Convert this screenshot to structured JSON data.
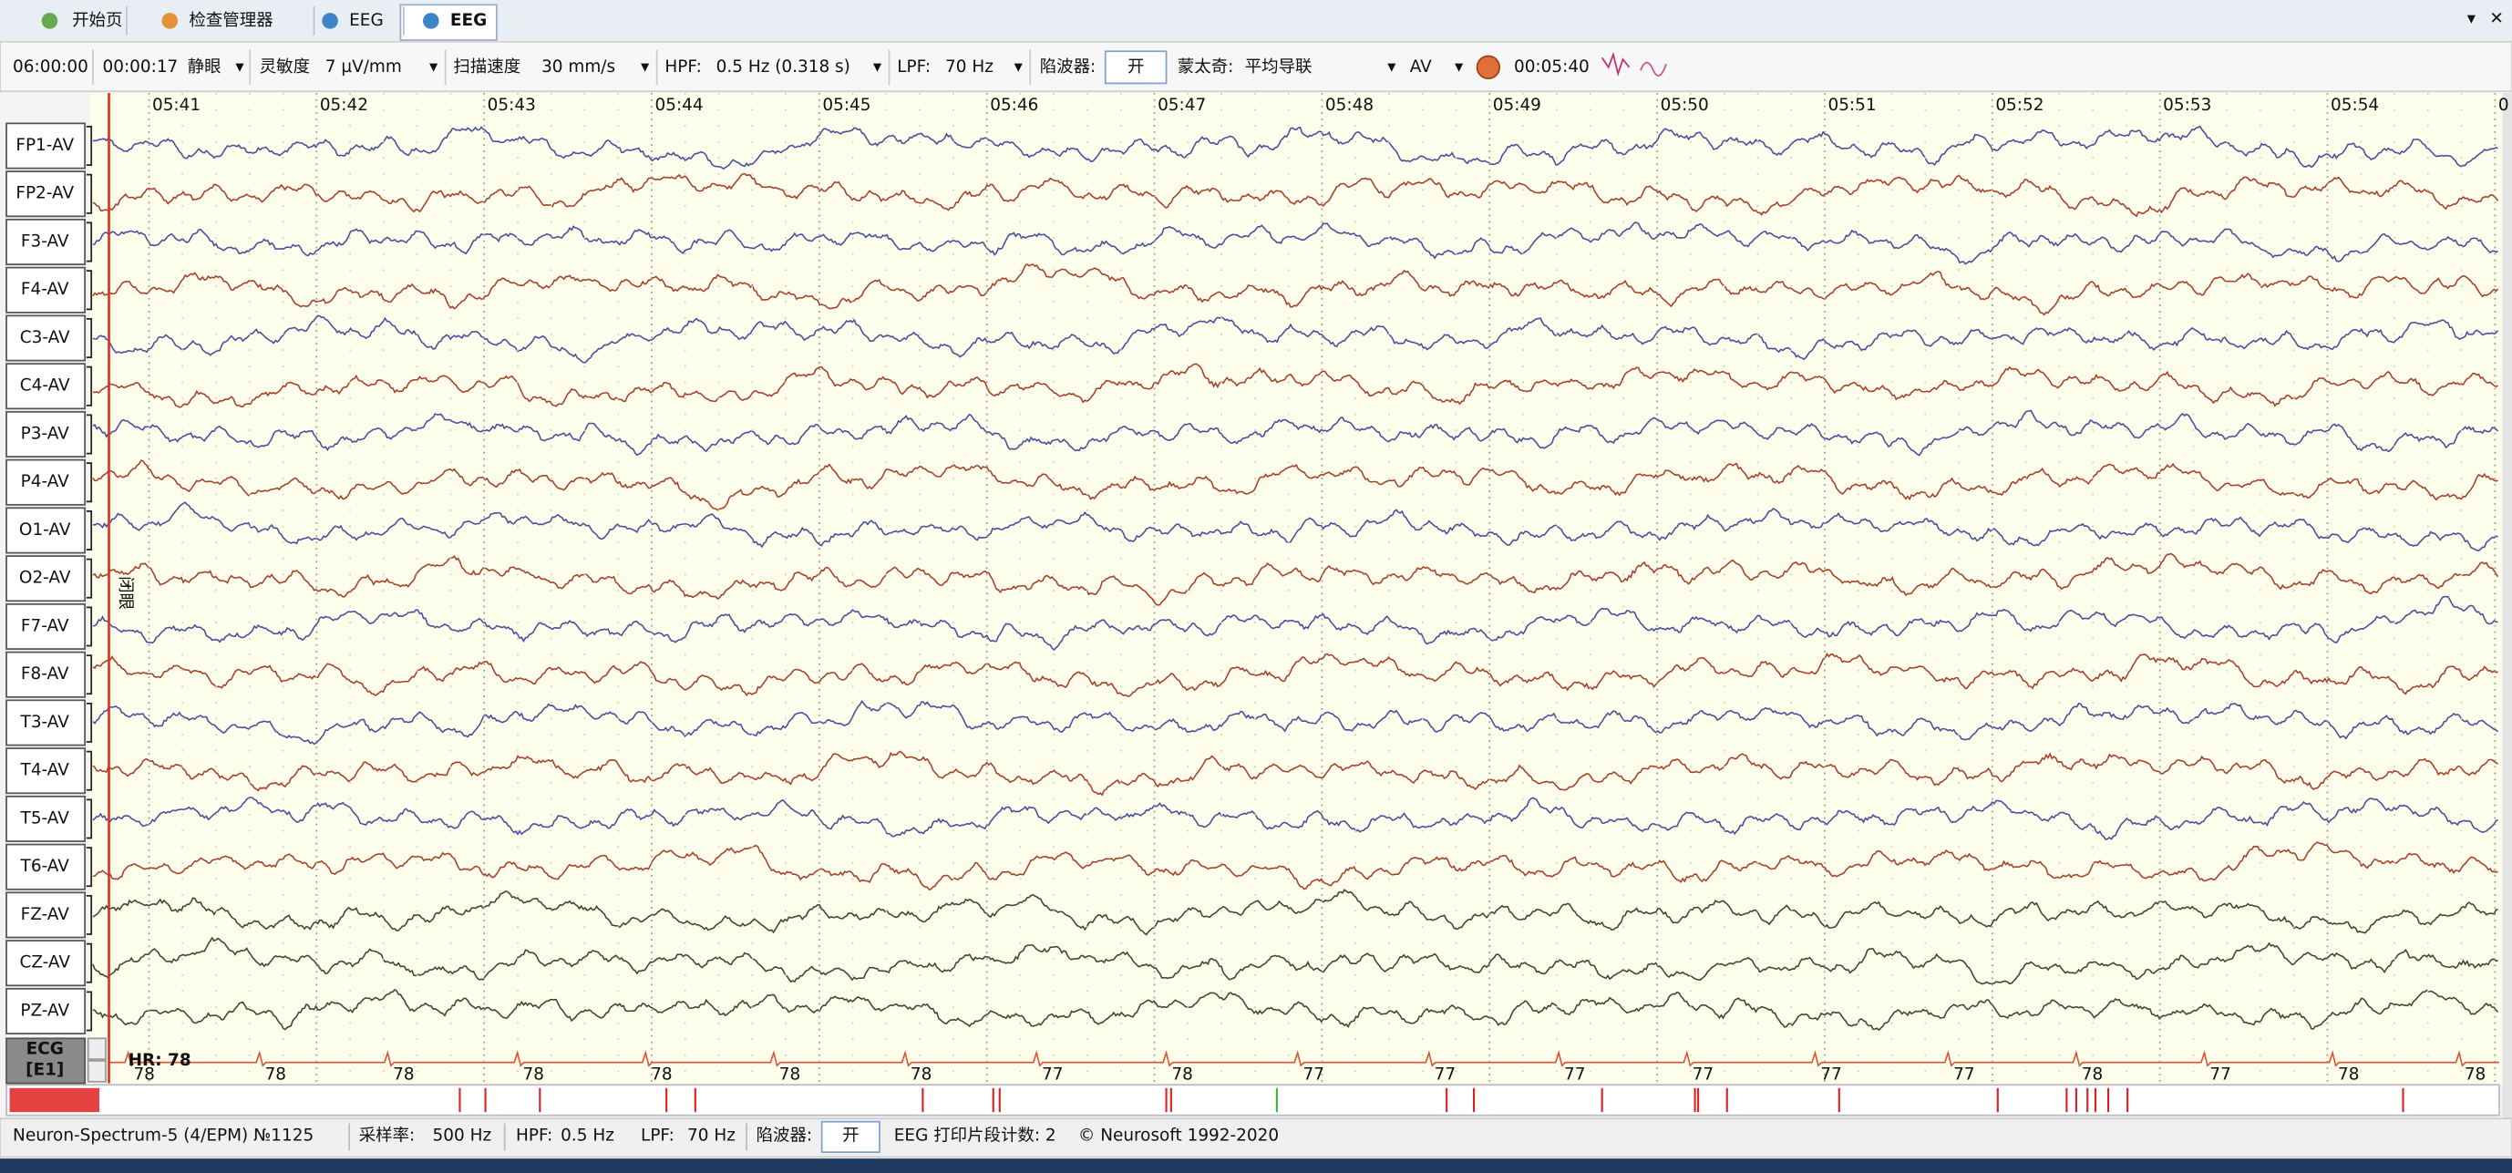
{
  "tabs": [
    "开始页",
    "检查管理器",
    "EEG",
    "EEG"
  ],
  "toolbar": {
    "start_time": "06:00:00",
    "elapsed": "00:00:17",
    "state": "静眼",
    "sensitivity_label": "灵敏度",
    "sensitivity": "7 µV/mm",
    "speed_label": "扫描速度",
    "speed": "30 mm/s",
    "hpf_label": "HPF:",
    "hpf": "0.5 Hz (0.318 s)",
    "lpf_label": "LPF:",
    "lpf": "70 Hz",
    "notch_label": "陷波器:",
    "notch": "开",
    "montage_label": "蒙太奇:",
    "montage": "平均导联",
    "reference": "AV",
    "time": "00:05:40"
  },
  "time_labels": [
    "05:41",
    "05:42",
    "05:43",
    "05:44",
    "05:45",
    "05:46",
    "05:47",
    "05:48",
    "05:49",
    "05:50",
    "05:51",
    "05:52",
    "05:53",
    "05:54",
    "0"
  ],
  "channels": [
    "FP1-AV",
    "FP2-AV",
    "F3-AV",
    "F4-AV",
    "C3-AV",
    "C4-AV",
    "P3-AV",
    "P4-AV",
    "O1-AV",
    "O2-AV",
    "F7-AV",
    "F8-AV",
    "T3-AV",
    "T4-AV",
    "T5-AV",
    "T6-AV",
    "FZ-AV",
    "CZ-AV",
    "PZ-AV"
  ],
  "ecg_label": [
    "ECG",
    "[E1]"
  ],
  "heart_rate": "HR: 78",
  "hr_values": [
    "78",
    "78",
    "78",
    "78",
    "78",
    "78",
    "78",
    "77",
    "78",
    "77",
    "77",
    "77",
    "77",
    "77",
    "77",
    "78",
    "77",
    "78",
    "78"
  ],
  "annotation": "闭眼",
  "status": {
    "device": "Neuron-Spectrum-5 (4/EPM) №1125",
    "rate_label": "采样率:",
    "rate": "500 Hz",
    "hpf_label": "HPF:",
    "hpf": "0.5 Hz",
    "lpf_label": "LPF:",
    "lpf": "70 Hz",
    "notch_label": "陷波器:",
    "notch": "开",
    "print_count": "EEG 打印片段计数: 2",
    "copyright": "© Neurosoft 1992-2020"
  }
}
